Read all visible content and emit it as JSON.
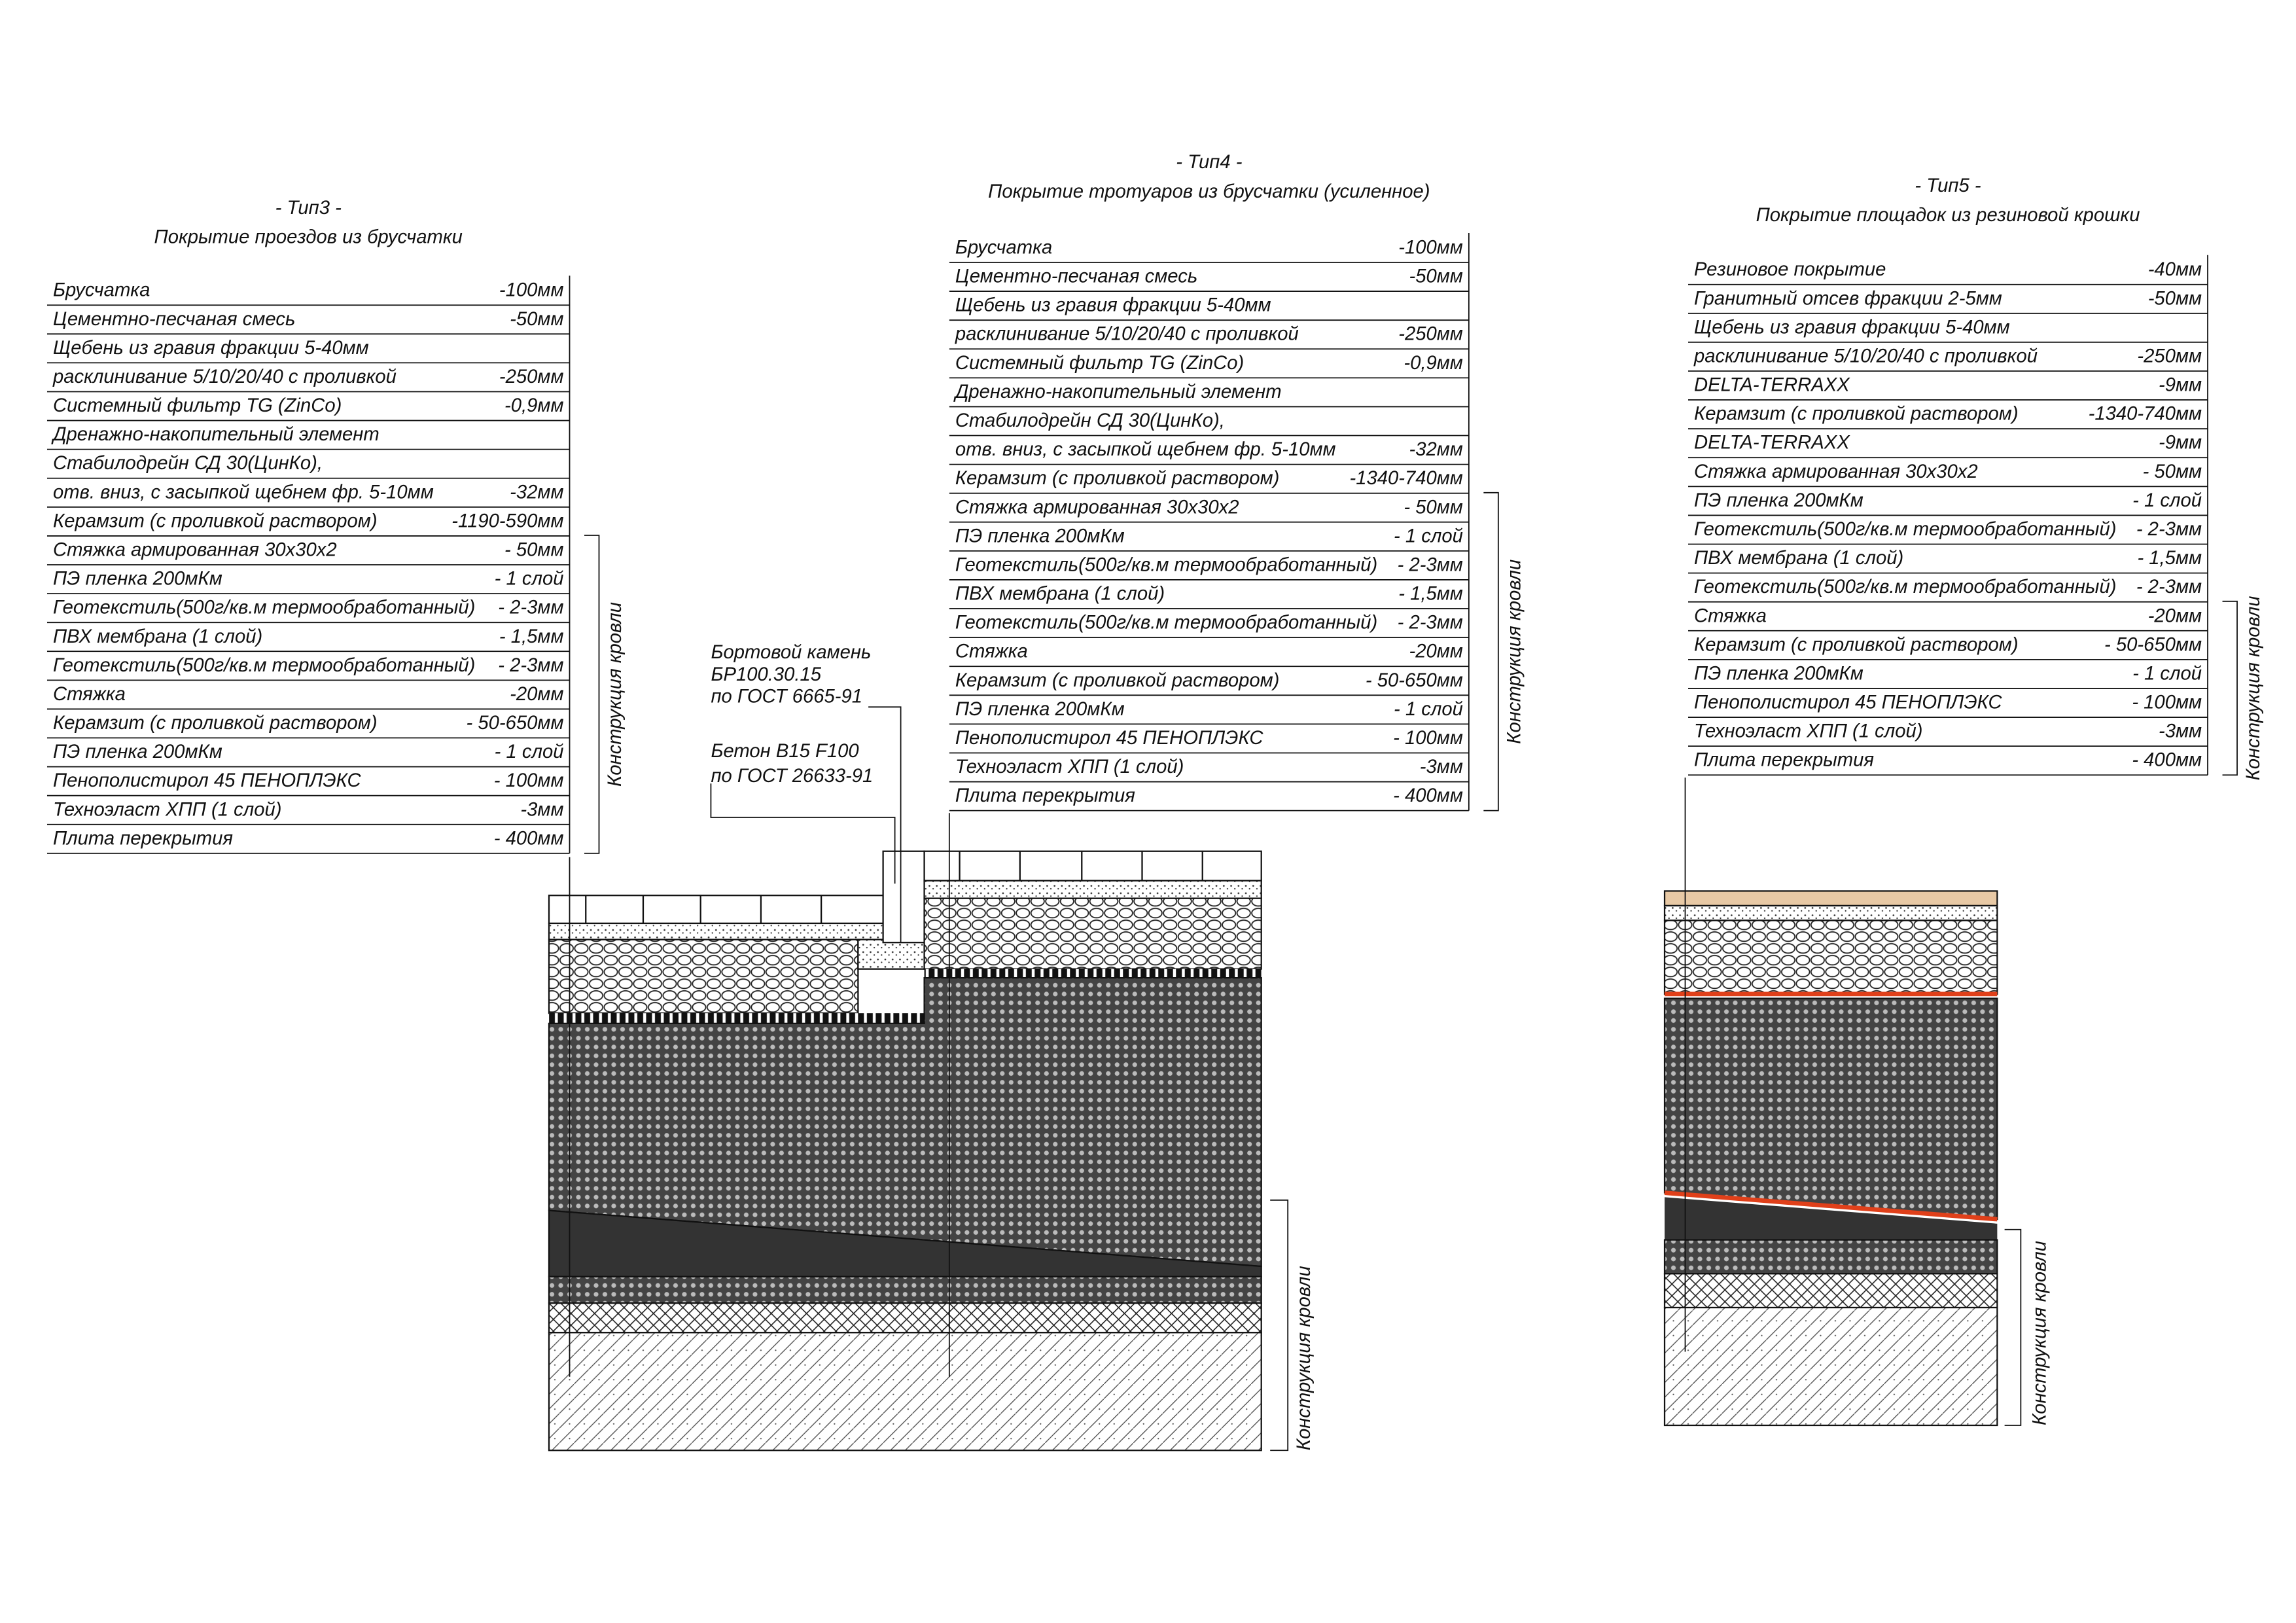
{
  "types": [
    {
      "label": "- Тип3 -",
      "title": "Покрытие проездов из брусчатки",
      "roof_label": "Конструкция кровли",
      "section_label": "Конструкция кровли",
      "layers": [
        {
          "name": "Брусчатка",
          "thickness": "-100мм"
        },
        {
          "name": "Цементно-песчаная смесь",
          "thickness": "-50мм"
        },
        {
          "name": "Щебень из гравия фракции 5-40мм"
        },
        {
          "name": "расклинивание 5/10/20/40 с проливкой",
          "thickness": "-250мм"
        },
        {
          "name": "Системный фильтр TG (ZinCo)",
          "thickness": "-0,9мм"
        },
        {
          "name": "Дренажно-накопительный элемент"
        },
        {
          "name": "Стабилодрейн СД 30(ЦинКо),"
        },
        {
          "name": "отв. вниз, с засыпкой щебнем фр. 5-10мм",
          "thickness": "-32мм"
        },
        {
          "name": "Керамзит (с проливкой раствором)",
          "thickness": "-1190-590мм"
        },
        {
          "name": "Стяжка армированная 30х30х2",
          "thickness": "- 50мм"
        },
        {
          "name": "ПЭ пленка 200мКм",
          "thickness": "- 1 слой"
        },
        {
          "name": "Геотекстиль(500г/кв.м термообработанный)",
          "thickness": "- 2-3мм"
        },
        {
          "name": "ПВХ мембрана (1 слой)",
          "thickness": "- 1,5мм"
        },
        {
          "name": "Геотекстиль(500г/кв.м термообработанный)",
          "thickness": "- 2-3мм"
        },
        {
          "name": "Стяжка",
          "thickness": "-20мм"
        },
        {
          "name": "Керамзит (с проливкой раствором)",
          "thickness": "- 50-650мм"
        },
        {
          "name": "ПЭ пленка 200мКм",
          "thickness": "- 1 слой"
        },
        {
          "name": "Пенополистирол 45 ПЕНОПЛЭКС",
          "thickness": "- 100мм"
        },
        {
          "name": "Техноэласт ХПП (1 слой)",
          "thickness": "-3мм"
        },
        {
          "name": "Плита перекрытия",
          "thickness": "- 400мм"
        }
      ]
    },
    {
      "label": "- Тип4 -",
      "title": "Покрытие тротуаров из брусчатки (усиленное)",
      "roof_label": "Конструкция кровли",
      "layers": [
        {
          "name": "Брусчатка",
          "thickness": "-100мм"
        },
        {
          "name": "Цементно-песчаная смесь",
          "thickness": "-50мм"
        },
        {
          "name": "Щебень из гравия фракции 5-40мм"
        },
        {
          "name": "расклинивание 5/10/20/40 с проливкой",
          "thickness": "-250мм"
        },
        {
          "name": "Системный фильтр TG (ZinCo)",
          "thickness": "-0,9мм"
        },
        {
          "name": "Дренажно-накопительный элемент"
        },
        {
          "name": "Стабилодрейн СД 30(ЦинКо),"
        },
        {
          "name": "отв. вниз, с засыпкой щебнем фр. 5-10мм",
          "thickness": "-32мм"
        },
        {
          "name": "Керамзит (с проливкой раствором)",
          "thickness": "-1340-740мм"
        },
        {
          "name": "Стяжка армированная 30х30х2",
          "thickness": "- 50мм"
        },
        {
          "name": "ПЭ пленка 200мКм",
          "thickness": "- 1 слой"
        },
        {
          "name": "Геотекстиль(500г/кв.м термообработанный)",
          "thickness": "- 2-3мм"
        },
        {
          "name": "ПВХ мембрана (1 слой)",
          "thickness": "- 1,5мм"
        },
        {
          "name": "Геотекстиль(500г/кв.м термообработанный)",
          "thickness": "- 2-3мм"
        },
        {
          "name": "Стяжка",
          "thickness": "-20мм"
        },
        {
          "name": "Керамзит (с проливкой раствором)",
          "thickness": "- 50-650мм"
        },
        {
          "name": "ПЭ пленка 200мКм",
          "thickness": "- 1 слой"
        },
        {
          "name": "Пенополистирол 45 ПЕНОПЛЭКС",
          "thickness": "- 100мм"
        },
        {
          "name": "Техноэласт ХПП (1 слой)",
          "thickness": "-3мм"
        },
        {
          "name": "Плита перекрытия",
          "thickness": "- 400мм"
        }
      ]
    },
    {
      "label": "- Тип5 -",
      "title": "Покрытие площадок из резиновой крошки",
      "roof_label": "Конструкция кровли",
      "section_label": "Конструкция кровли",
      "layers": [
        {
          "name": "Резиновое покрытие",
          "thickness": "-40мм"
        },
        {
          "name": "Гранитный отсев фракции 2-5мм",
          "thickness": "-50мм"
        },
        {
          "name": "Щебень из гравия фракции 5-40мм"
        },
        {
          "name": "расклинивание 5/10/20/40 с проливкой",
          "thickness": "-250мм"
        },
        {
          "name": "DELTA-TERRAXX",
          "thickness": "-9мм"
        },
        {
          "name": "Керамзит (с проливкой раствором)",
          "thickness": "-1340-740мм"
        },
        {
          "name": "DELTA-TERRAXX",
          "thickness": "-9мм"
        },
        {
          "name": "Стяжка армированная 30х30х2",
          "thickness": "- 50мм"
        },
        {
          "name": "ПЭ пленка 200мКм",
          "thickness": "- 1 слой"
        },
        {
          "name": "Геотекстиль(500г/кв.м термообработанный)",
          "thickness": "- 2-3мм"
        },
        {
          "name": "ПВХ мембрана (1 слой)",
          "thickness": "- 1,5мм"
        },
        {
          "name": "Геотекстиль(500г/кв.м термообработанный)",
          "thickness": "- 2-3мм"
        },
        {
          "name": "Стяжка",
          "thickness": "-20мм"
        },
        {
          "name": "Керамзит (с проливкой раствором)",
          "thickness": "- 50-650мм"
        },
        {
          "name": "ПЭ пленка 200мКм",
          "thickness": "- 1 слой"
        },
        {
          "name": "Пенополистирол 45 ПЕНОПЛЭКС",
          "thickness": "- 100мм"
        },
        {
          "name": "Техноэласт ХПП (1 слой)",
          "thickness": "-3мм"
        },
        {
          "name": "Плита перекрытия",
          "thickness": "- 400мм"
        }
      ]
    }
  ],
  "callouts": [
    {
      "lines": [
        "Бортовой камень",
        "БР100.30.15",
        "по ГОСТ 6665-91"
      ]
    },
    {
      "lines": [
        "Бетон B15 F100",
        "по ГОСТ 26633-91"
      ]
    }
  ]
}
